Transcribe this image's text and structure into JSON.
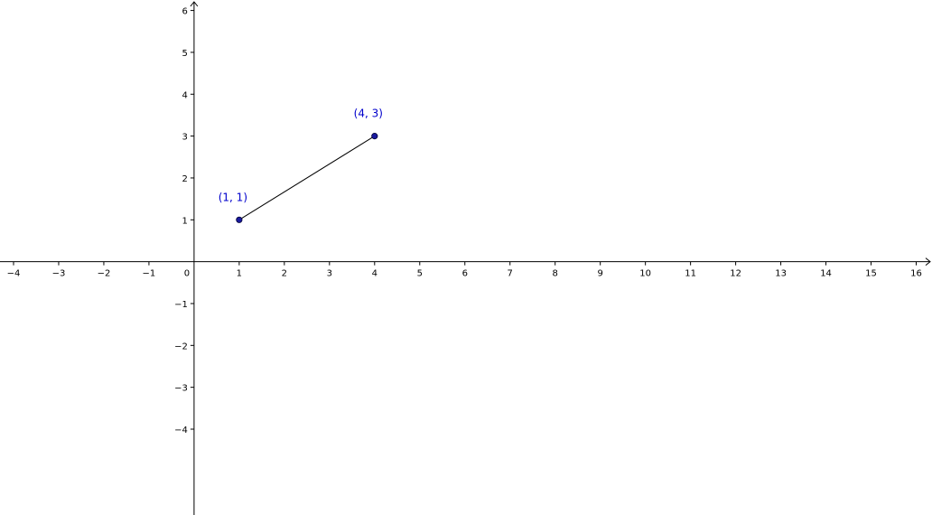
{
  "chart_data": {
    "type": "scatter",
    "xlim": [
      -4.3,
      16.35
    ],
    "ylim": [
      -6.05,
      6.25
    ],
    "x_ticks": [
      -4,
      -3,
      -2,
      -1,
      1,
      2,
      3,
      4,
      5,
      6,
      7,
      8,
      9,
      10,
      11,
      12,
      13,
      14,
      15,
      16
    ],
    "y_ticks": [
      -4,
      -3,
      -2,
      -1,
      1,
      2,
      3,
      4,
      5,
      6
    ],
    "x_tick_labels": [
      "−4",
      "−3",
      "−2",
      "−1",
      "1",
      "2",
      "3",
      "4",
      "5",
      "6",
      "7",
      "8",
      "9",
      "10",
      "11",
      "12",
      "13",
      "14",
      "15",
      "16"
    ],
    "y_tick_labels": [
      "−4",
      "−3",
      "−2",
      "−1",
      "1",
      "2",
      "3",
      "4",
      "5",
      "6"
    ],
    "origin_label": "0",
    "grid": false,
    "points": [
      {
        "x": 1,
        "y": 1,
        "label": "(1, 1)"
      },
      {
        "x": 4,
        "y": 3,
        "label": "(4, 3)"
      }
    ],
    "segments": [
      {
        "from": [
          1,
          1
        ],
        "to": [
          4,
          3
        ]
      }
    ],
    "colors": {
      "axis": "#000000",
      "point_fill": "#1a1a9e",
      "point_stroke": "#000033",
      "label": "#0000cc",
      "segment": "#000000"
    }
  }
}
